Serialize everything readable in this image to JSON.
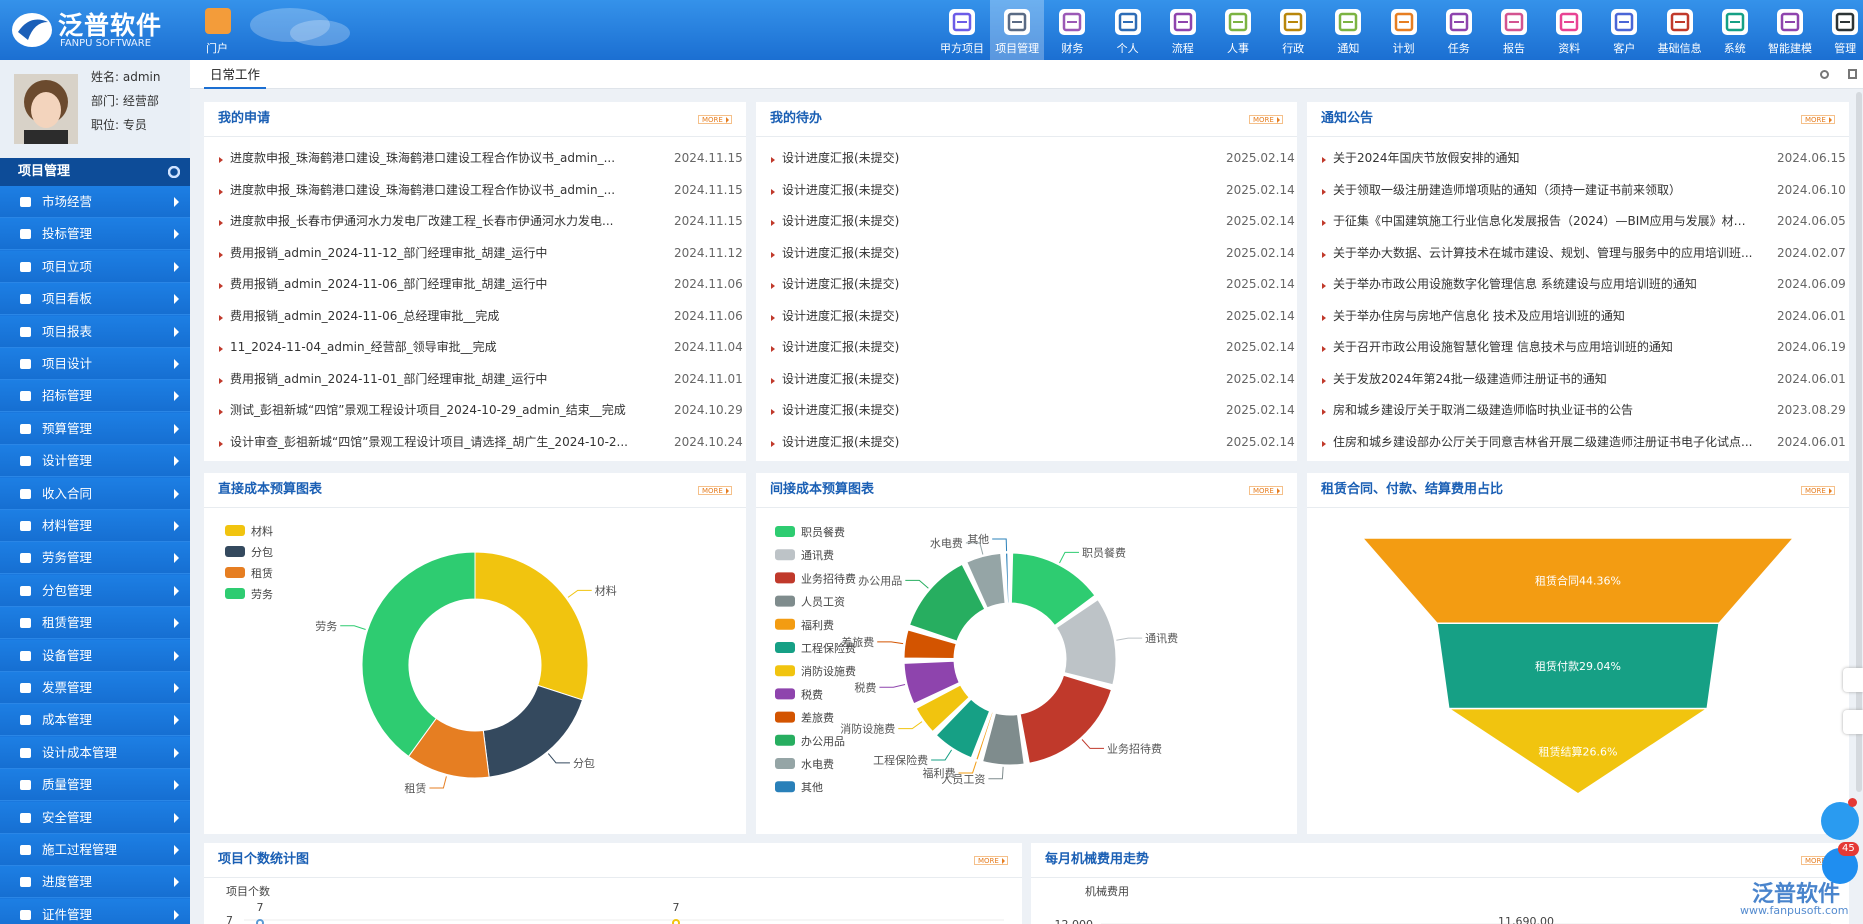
{
  "header": {
    "logo_title": "泛普软件",
    "logo_subtitle": "FANPU SOFTWARE",
    "portal": "门户",
    "nav": [
      "甲方项目",
      "项目管理",
      "财务",
      "个人",
      "流程",
      "人事",
      "行政",
      "通知",
      "计划",
      "任务",
      "报告",
      "资料",
      "客户",
      "基础信息",
      "系统",
      "智能建模",
      "管理"
    ]
  },
  "user": {
    "name": "姓名: admin",
    "dept": "部门: 经营部",
    "position": "职位: 专员"
  },
  "sidebar": {
    "title": "项目管理",
    "items": [
      "市场经营",
      "投标管理",
      "项目立项",
      "项目看板",
      "项目报表",
      "项目设计",
      "招标管理",
      "预算管理",
      "设计管理",
      "收入合同",
      "材料管理",
      "劳务管理",
      "分包管理",
      "租赁管理",
      "设备管理",
      "发票管理",
      "成本管理",
      "设计成本管理",
      "质量管理",
      "安全管理",
      "施工过程管理",
      "进度管理",
      "证件管理"
    ]
  },
  "tabs": [
    "日常工作"
  ],
  "panels": {
    "applications": {
      "title": "我的申请",
      "more": "MORE",
      "rows": [
        [
          "进度款申报_珠海鹤港口建设_珠海鹤港口建设工程合作协议书_admin_...",
          "2024.11.15"
        ],
        [
          "进度款申报_珠海鹤港口建设_珠海鹤港口建设工程合作协议书_admin_...",
          "2024.11.15"
        ],
        [
          "进度款申报_长春市伊通河水力发电厂改建工程_长春市伊通河水力发电...",
          "2024.11.15"
        ],
        [
          "费用报销_admin_2024-11-12_部门经理审批_胡建_运行中",
          "2024.11.12"
        ],
        [
          "费用报销_admin_2024-11-06_部门经理审批_胡建_运行中",
          "2024.11.06"
        ],
        [
          "费用报销_admin_2024-11-06_总经理审批__完成",
          "2024.11.06"
        ],
        [
          "11_2024-11-04_admin_经营部_领导审批__完成",
          "2024.11.04"
        ],
        [
          "费用报销_admin_2024-11-01_部门经理审批_胡建_运行中",
          "2024.11.01"
        ],
        [
          "测试_彭祖新城“四馆”景观工程设计项目_2024-10-29_admin_结束__完成",
          "2024.10.29"
        ],
        [
          "设计审查_彭祖新城“四馆”景观工程设计项目_请选择_胡广生_2024-10-2...",
          "2024.10.24"
        ]
      ]
    },
    "todo": {
      "title": "我的待办",
      "more": "MORE",
      "rows": [
        [
          "设计进度汇报(未提交)",
          "2025.02.14"
        ],
        [
          "设计进度汇报(未提交)",
          "2025.02.14"
        ],
        [
          "设计进度汇报(未提交)",
          "2025.02.14"
        ],
        [
          "设计进度汇报(未提交)",
          "2025.02.14"
        ],
        [
          "设计进度汇报(未提交)",
          "2025.02.14"
        ],
        [
          "设计进度汇报(未提交)",
          "2025.02.14"
        ],
        [
          "设计进度汇报(未提交)",
          "2025.02.14"
        ],
        [
          "设计进度汇报(未提交)",
          "2025.02.14"
        ],
        [
          "设计进度汇报(未提交)",
          "2025.02.14"
        ],
        [
          "设计进度汇报(未提交)",
          "2025.02.14"
        ]
      ]
    },
    "notices": {
      "title": "通知公告",
      "more": "MORE",
      "rows": [
        [
          "关于2024年国庆节放假安排的通知",
          "2024.06.15"
        ],
        [
          "关于领取一级注册建造师增项贴的通知（须持一建证书前来领取）",
          "2024.06.10"
        ],
        [
          "于征集《中国建筑施工行业信息化发展报告（2024）—BIM应用与发展》材料...",
          "2024.06.05"
        ],
        [
          "关于举办大数据、云计算技术在城市建设、规划、管理与服务中的应用培训班...",
          "2024.02.07"
        ],
        [
          "关于举办市政公用设施数字化管理信息 系统建设与应用培训班的通知",
          "2024.06.09"
        ],
        [
          "关于举办住房与房地产信息化 技术及应用培训班的通知",
          "2024.06.01"
        ],
        [
          "关于召开市政公用设施智慧化管理 信息技术与应用培训班的通知",
          "2024.06.19"
        ],
        [
          "关于发放2024年第24批一级建造师注册证书的通知",
          "2024.06.01"
        ],
        [
          "房和城乡建设厅关于取消二级建造师临时执业证书的公告",
          "2023.08.29"
        ],
        [
          "住房和城乡建设部办公厅关于同意吉林省开展二级建造师注册证书电子化试点...",
          "2024.06.01"
        ]
      ]
    },
    "direct_cost": {
      "title": "直接成本预算图表",
      "more": "MORE",
      "chart": {
        "type": "pie",
        "categories": [
          "材料",
          "分包",
          "租赁",
          "劳务"
        ],
        "values": [
          30,
          18,
          12,
          40
        ],
        "colors": [
          "#f1c40f",
          "#34495e",
          "#e67e22",
          "#2ecc71"
        ]
      }
    },
    "indirect_cost": {
      "title": "间接成本预算图表",
      "more": "MORE",
      "chart": {
        "type": "pie",
        "categories": [
          "职员餐费",
          "通讯费",
          "业务招待费",
          "人员工资",
          "福利费",
          "工程保险费",
          "消防设施费",
          "税费",
          "差旅费",
          "办公用品",
          "水电费",
          "其他"
        ],
        "values": [
          15,
          14,
          18,
          7,
          1,
          7,
          5,
          7,
          5,
          13,
          6,
          1
        ],
        "colors": [
          "#2ecc71",
          "#bdc3c7",
          "#c0392b",
          "#7f8c8d",
          "#f39c12",
          "#16a085",
          "#f1c40f",
          "#8e44ad",
          "#d35400",
          "#27ae60",
          "#95a5a6",
          "#2980b9"
        ]
      }
    },
    "lease": {
      "title": "租赁合同、付款、结算费用占比",
      "more": "MORE",
      "chart": {
        "type": "funnel",
        "categories": [
          "租赁合同",
          "租赁付款",
          "租赁结算"
        ],
        "values": [
          44.36,
          29.04,
          26.6
        ],
        "value_labels": [
          "租赁合同44.36%",
          "租赁付款29.04%",
          "租赁结算26.6%"
        ],
        "colors": [
          "#f39c12",
          "#16a085",
          "#f1c40f"
        ]
      }
    },
    "project_count": {
      "title": "项目个数统计图",
      "more": "MORE",
      "chart": {
        "type": "line",
        "y_label": "项目个数",
        "yticks": [
          7
        ],
        "values": [
          7,
          7
        ]
      }
    },
    "machine_cost": {
      "title": "每月机械费用走势",
      "more": "MORE",
      "chart": {
        "type": "line",
        "y_label": "机械费用",
        "yticks": [
          {
            "value": 12000,
            "label": "12,000"
          }
        ],
        "values": [
          11690
        ],
        "value_labels": [
          "11,690.00"
        ]
      }
    }
  },
  "float": {
    "badge": "45"
  },
  "watermark": {
    "title": "泛普软件",
    "url": "www.fanpusoft.com"
  }
}
